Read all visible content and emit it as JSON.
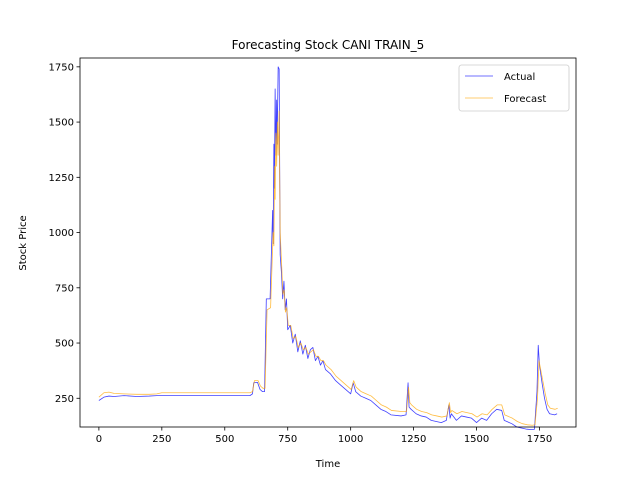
{
  "chart_data": {
    "type": "line",
    "title": "Forecasting Stock CANI TRAIN_5",
    "xlabel": "Time",
    "ylabel": "Stock Price",
    "xlim": [
      -75,
      1895
    ],
    "ylim": [
      120,
      1790
    ],
    "xticks": [
      0,
      250,
      500,
      750,
      1000,
      1250,
      1500,
      1750
    ],
    "yticks": [
      250,
      500,
      750,
      1000,
      1250,
      1500,
      1750
    ],
    "grid": false,
    "legend": "top-right",
    "series": [
      {
        "name": "Actual",
        "color": "#0000ff",
        "points": [
          [
            0,
            240
          ],
          [
            20,
            255
          ],
          [
            40,
            260
          ],
          [
            60,
            258
          ],
          [
            100,
            262
          ],
          [
            150,
            258
          ],
          [
            200,
            260
          ],
          [
            230,
            262
          ],
          [
            250,
            262
          ],
          [
            400,
            262
          ],
          [
            600,
            262
          ],
          [
            610,
            270
          ],
          [
            615,
            320
          ],
          [
            630,
            322
          ],
          [
            640,
            290
          ],
          [
            650,
            280
          ],
          [
            658,
            280
          ],
          [
            665,
            700
          ],
          [
            680,
            700
          ],
          [
            690,
            1100
          ],
          [
            692,
            950
          ],
          [
            695,
            1400
          ],
          [
            697,
            1200
          ],
          [
            700,
            1650
          ],
          [
            703,
            1350
          ],
          [
            706,
            1600
          ],
          [
            708,
            1400
          ],
          [
            712,
            1750
          ],
          [
            716,
            1740
          ],
          [
            720,
            900
          ],
          [
            725,
            820
          ],
          [
            730,
            700
          ],
          [
            735,
            780
          ],
          [
            740,
            650
          ],
          [
            745,
            700
          ],
          [
            750,
            560
          ],
          [
            760,
            580
          ],
          [
            770,
            500
          ],
          [
            780,
            540
          ],
          [
            790,
            460
          ],
          [
            800,
            510
          ],
          [
            810,
            450
          ],
          [
            820,
            490
          ],
          [
            830,
            430
          ],
          [
            840,
            470
          ],
          [
            850,
            480
          ],
          [
            860,
            420
          ],
          [
            870,
            440
          ],
          [
            880,
            400
          ],
          [
            890,
            420
          ],
          [
            900,
            380
          ],
          [
            920,
            360
          ],
          [
            940,
            330
          ],
          [
            960,
            310
          ],
          [
            980,
            290
          ],
          [
            1000,
            270
          ],
          [
            1010,
            320
          ],
          [
            1020,
            280
          ],
          [
            1040,
            260
          ],
          [
            1060,
            250
          ],
          [
            1080,
            240
          ],
          [
            1100,
            220
          ],
          [
            1120,
            200
          ],
          [
            1140,
            190
          ],
          [
            1160,
            175
          ],
          [
            1200,
            170
          ],
          [
            1220,
            175
          ],
          [
            1228,
            320
          ],
          [
            1232,
            210
          ],
          [
            1240,
            200
          ],
          [
            1260,
            180
          ],
          [
            1280,
            170
          ],
          [
            1300,
            165
          ],
          [
            1320,
            150
          ],
          [
            1340,
            145
          ],
          [
            1360,
            140
          ],
          [
            1380,
            150
          ],
          [
            1390,
            220
          ],
          [
            1395,
            160
          ],
          [
            1400,
            180
          ],
          [
            1420,
            150
          ],
          [
            1440,
            170
          ],
          [
            1460,
            165
          ],
          [
            1480,
            160
          ],
          [
            1500,
            140
          ],
          [
            1520,
            160
          ],
          [
            1540,
            150
          ],
          [
            1560,
            180
          ],
          [
            1580,
            200
          ],
          [
            1600,
            195
          ],
          [
            1610,
            150
          ],
          [
            1630,
            140
          ],
          [
            1640,
            135
          ],
          [
            1660,
            120
          ],
          [
            1680,
            115
          ],
          [
            1700,
            110
          ],
          [
            1720,
            108
          ],
          [
            1730,
            110
          ],
          [
            1740,
            280
          ],
          [
            1745,
            490
          ],
          [
            1750,
            400
          ],
          [
            1760,
            320
          ],
          [
            1770,
            250
          ],
          [
            1780,
            200
          ],
          [
            1790,
            180
          ],
          [
            1810,
            175
          ],
          [
            1820,
            180
          ]
        ]
      },
      {
        "name": "Forecast",
        "color": "#ffa500",
        "points": [
          [
            0,
            255
          ],
          [
            20,
            275
          ],
          [
            40,
            278
          ],
          [
            60,
            272
          ],
          [
            100,
            270
          ],
          [
            150,
            268
          ],
          [
            200,
            268
          ],
          [
            230,
            270
          ],
          [
            250,
            275
          ],
          [
            400,
            275
          ],
          [
            600,
            275
          ],
          [
            610,
            280
          ],
          [
            618,
            330
          ],
          [
            632,
            330
          ],
          [
            642,
            305
          ],
          [
            652,
            295
          ],
          [
            660,
            295
          ],
          [
            668,
            650
          ],
          [
            682,
            660
          ],
          [
            692,
            1000
          ],
          [
            695,
            940
          ],
          [
            698,
            1300
          ],
          [
            700,
            1150
          ],
          [
            703,
            1450
          ],
          [
            706,
            1300
          ],
          [
            709,
            1500
          ],
          [
            712,
            1350
          ],
          [
            716,
            1550
          ],
          [
            720,
            1000
          ],
          [
            726,
            850
          ],
          [
            731,
            720
          ],
          [
            736,
            740
          ],
          [
            741,
            640
          ],
          [
            746,
            660
          ],
          [
            752,
            580
          ],
          [
            762,
            580
          ],
          [
            772,
            520
          ],
          [
            782,
            530
          ],
          [
            792,
            480
          ],
          [
            802,
            500
          ],
          [
            812,
            470
          ],
          [
            822,
            480
          ],
          [
            832,
            450
          ],
          [
            842,
            460
          ],
          [
            852,
            470
          ],
          [
            862,
            440
          ],
          [
            872,
            440
          ],
          [
            882,
            420
          ],
          [
            892,
            420
          ],
          [
            902,
            400
          ],
          [
            922,
            380
          ],
          [
            942,
            350
          ],
          [
            962,
            330
          ],
          [
            982,
            310
          ],
          [
            1002,
            290
          ],
          [
            1012,
            330
          ],
          [
            1022,
            300
          ],
          [
            1042,
            280
          ],
          [
            1062,
            270
          ],
          [
            1082,
            260
          ],
          [
            1102,
            240
          ],
          [
            1122,
            220
          ],
          [
            1142,
            210
          ],
          [
            1162,
            195
          ],
          [
            1202,
            190
          ],
          [
            1222,
            190
          ],
          [
            1230,
            300
          ],
          [
            1235,
            230
          ],
          [
            1242,
            220
          ],
          [
            1262,
            200
          ],
          [
            1282,
            190
          ],
          [
            1302,
            185
          ],
          [
            1322,
            175
          ],
          [
            1342,
            170
          ],
          [
            1362,
            165
          ],
          [
            1382,
            170
          ],
          [
            1392,
            230
          ],
          [
            1397,
            185
          ],
          [
            1402,
            195
          ],
          [
            1422,
            180
          ],
          [
            1442,
            190
          ],
          [
            1462,
            185
          ],
          [
            1482,
            180
          ],
          [
            1502,
            165
          ],
          [
            1522,
            180
          ],
          [
            1542,
            175
          ],
          [
            1562,
            200
          ],
          [
            1582,
            220
          ],
          [
            1600,
            220
          ],
          [
            1612,
            175
          ],
          [
            1632,
            165
          ],
          [
            1642,
            160
          ],
          [
            1662,
            145
          ],
          [
            1682,
            135
          ],
          [
            1702,
            130
          ],
          [
            1722,
            128
          ],
          [
            1732,
            130
          ],
          [
            1742,
            250
          ],
          [
            1748,
            420
          ],
          [
            1753,
            390
          ],
          [
            1763,
            330
          ],
          [
            1773,
            270
          ],
          [
            1783,
            220
          ],
          [
            1793,
            205
          ],
          [
            1812,
            200
          ],
          [
            1822,
            205
          ]
        ]
      }
    ]
  }
}
